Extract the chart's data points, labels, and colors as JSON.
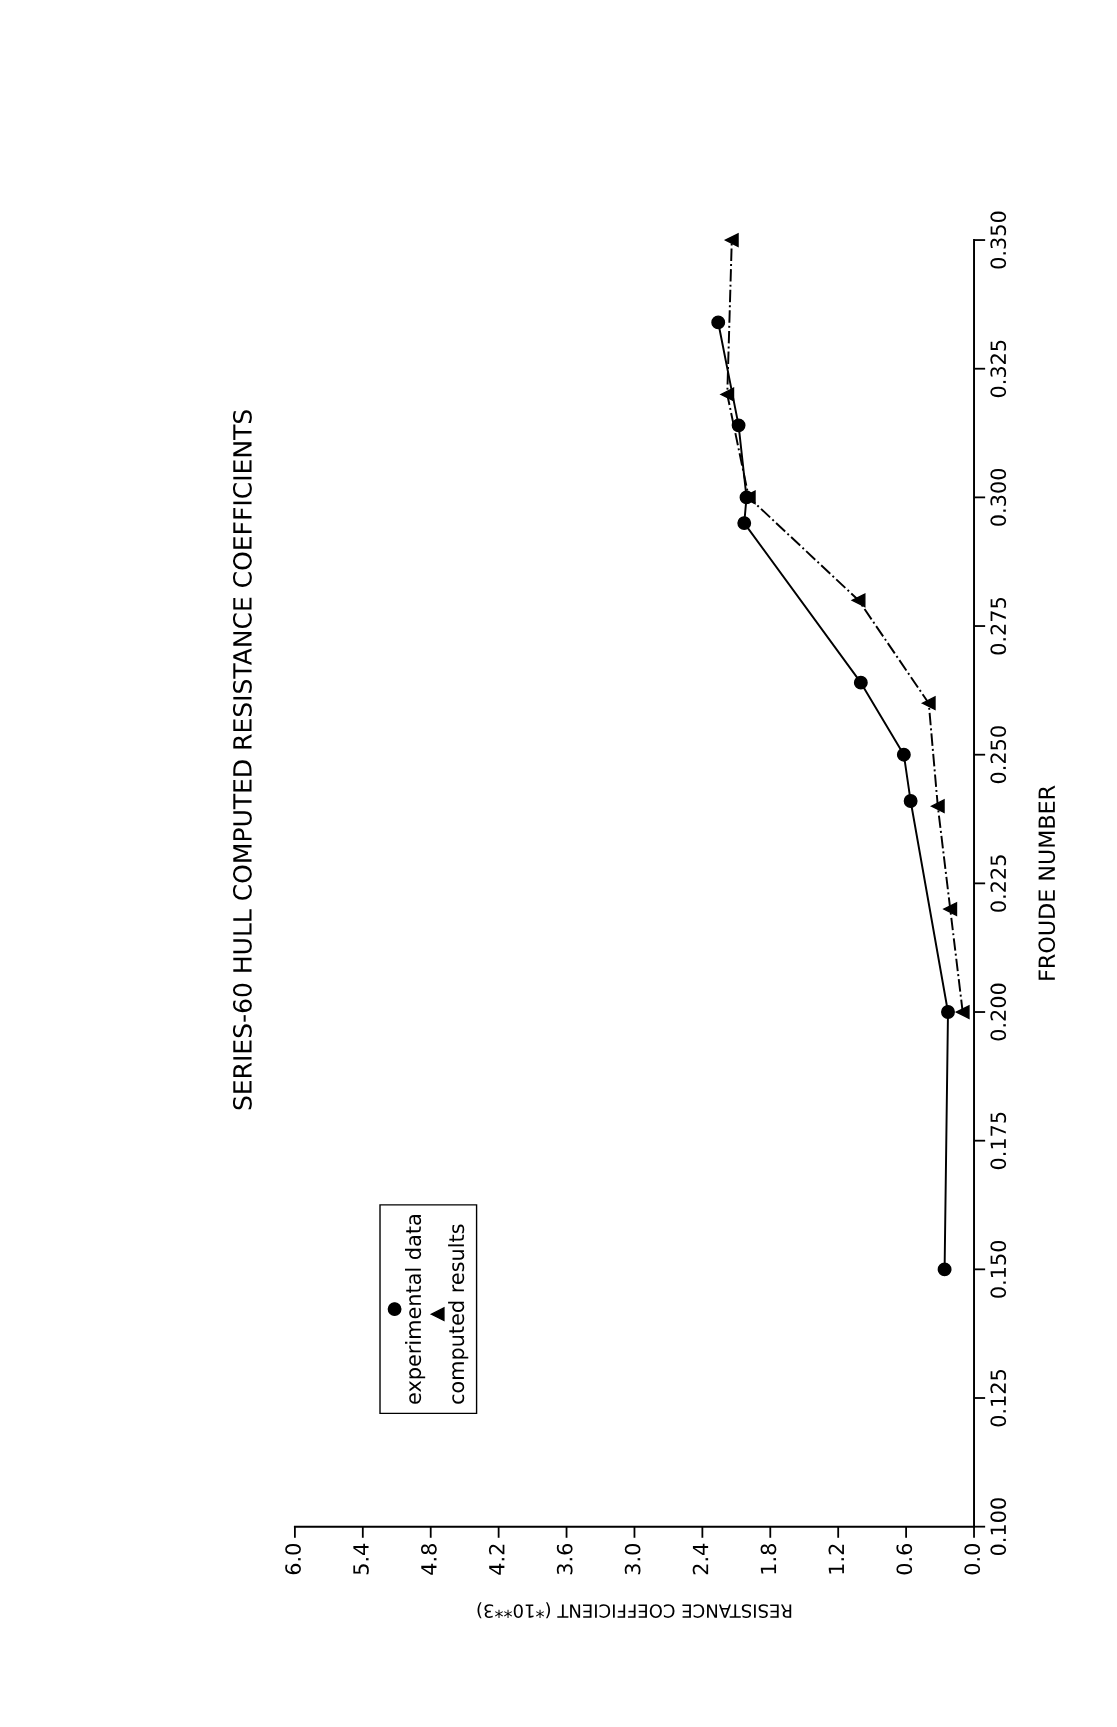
{
  "chart_data": {
    "type": "line",
    "title": "SERIES-60 HULL COMPUTED RESISTANCE COEFFICIENTS",
    "xlabel": "RESISTANCE COEFFICIENT (*10**3)",
    "ylabel": "FROUDE NUMBER",
    "xlim": [
      6,
      0
    ],
    "xticks": [
      {
        "value": 0,
        "label": "0.0"
      },
      {
        "value": 0.6,
        "label": "0.6"
      },
      {
        "value": 1.2,
        "label": "1.2"
      },
      {
        "value": 1.8,
        "label": "1.8"
      },
      {
        "value": 2.4,
        "label": "2.4"
      },
      {
        "value": 3.0,
        "label": "3.0"
      },
      {
        "value": 3.6,
        "label": "3.6"
      },
      {
        "value": 4.2,
        "label": "4.2"
      },
      {
        "value": 4.8,
        "label": "4.8"
      },
      {
        "value": 5.4,
        "label": "5.4"
      },
      {
        "value": 6.0,
        "label": "6.0"
      }
    ],
    "ylim": [
      0.1,
      0.35
    ],
    "yticks": [
      {
        "value": 0.1,
        "label": "0.100"
      },
      {
        "value": 0.125,
        "label": "0.125"
      },
      {
        "value": 0.15,
        "label": "0.150"
      },
      {
        "value": 0.175,
        "label": "0.175"
      },
      {
        "value": 0.2,
        "label": "0.200"
      },
      {
        "value": 0.225,
        "label": "0.225"
      },
      {
        "value": 0.25,
        "label": "0.250"
      },
      {
        "value": 0.275,
        "label": "0.275"
      },
      {
        "value": 0.3,
        "label": "0.300"
      },
      {
        "value": 0.325,
        "label": "0.325"
      },
      {
        "value": 0.35,
        "label": "0.350"
      }
    ],
    "grid": false,
    "legend": "bottom left",
    "series": [
      {
        "name": "experimental data",
        "color": "#000000",
        "marker": "circle",
        "line_style": "solid",
        "x": [
          0.26,
          0.23,
          0.56,
          0.62,
          1.0,
          2.03,
          2.01,
          2.08,
          2.26
        ],
        "values": [
          0.15,
          0.2,
          0.241,
          0.25,
          0.264,
          0.295,
          0.3,
          0.314,
          0.334
        ]
      },
      {
        "name": "computed results",
        "color": "#000000",
        "marker": "triangle",
        "line_style": "dashed",
        "x": [
          0.1,
          0.21,
          0.32,
          0.4,
          1.02,
          1.99,
          2.18,
          2.14
        ],
        "values": [
          0.2,
          0.22,
          0.24,
          0.26,
          0.28,
          0.3,
          0.32,
          0.35
        ]
      }
    ]
  }
}
